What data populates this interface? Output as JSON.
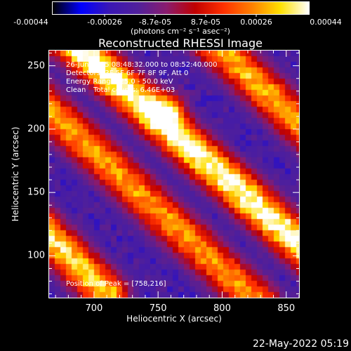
{
  "colorbar": {
    "tick_labels": [
      "-0.00044",
      "-0.00026",
      "-8.7e-05",
      "8.7e-05",
      "0.00026",
      "0.00044"
    ],
    "units": "(photons cm⁻² s⁻¹ asec⁻²)",
    "range": [
      -0.00044,
      0.00044
    ],
    "colormap": [
      "#000000",
      "#0000ff",
      "#3a17b4",
      "#50209b",
      "#8a1c6e",
      "#c00000",
      "#ff3000",
      "#ff8000",
      "#ffe000",
      "#ffffff"
    ]
  },
  "chart_data": {
    "type": "heatmap",
    "title": "Reconstructed RHESSI Image",
    "xlabel": "Heliocentric X (arcsec)",
    "ylabel": "Heliocentric Y (arcsec)",
    "xlim": [
      665,
      860
    ],
    "ylim": [
      67,
      262
    ],
    "x_ticks": [
      700,
      750,
      800,
      850
    ],
    "y_ticks": [
      100,
      150,
      200,
      250
    ],
    "peak": [
      758,
      216
    ],
    "annotations": {
      "time": "26-Jun-2015 08:48:32.000 to 08:52:40.000",
      "detectors": "Detectors: 3F 5F 6F 7F 8F 9F, Att 0",
      "energy": "Energy Range: 25.0 - 50.0 keV",
      "clean": "Clean",
      "counts": "Total counts: 6.46E+03",
      "peak_text": "Position of Peak = [758,216]"
    },
    "structure": "three diagonal ridges of high intensity running from upper-left to lower-right separated by low-intensity purple/blue troughs",
    "ridges": [
      {
        "description": "top-left ridge",
        "passes_through": [
          [
            690,
            262
          ],
          [
            770,
            190
          ],
          [
            860,
            110
          ]
        ],
        "peak_value_norm": 1.0,
        "peak_at": [
          758,
          216
        ]
      },
      {
        "description": "middle ridge",
        "passes_through": [
          [
            665,
            215
          ],
          [
            745,
            140
          ],
          [
            810,
            80
          ]
        ],
        "peak_value_norm": 0.78
      },
      {
        "description": "bottom-left ridge",
        "passes_through": [
          [
            665,
            115
          ],
          [
            700,
            80
          ]
        ],
        "peak_value_norm": 0.88
      },
      {
        "description": "top-right ridge",
        "passes_through": [
          [
            800,
            262
          ],
          [
            860,
            205
          ]
        ],
        "peak_value_norm": 0.82
      }
    ]
  },
  "footer": {
    "timestamp": "22-May-2022 05:19"
  }
}
